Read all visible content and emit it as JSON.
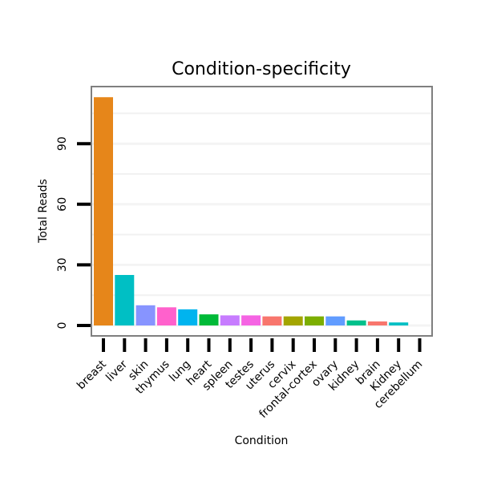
{
  "chart_data": {
    "type": "bar",
    "title": "Condition-specificity",
    "xlabel": "Condition",
    "ylabel": "Total Reads",
    "ylim": [
      0,
      120
    ],
    "yticks": [
      0,
      30,
      60,
      90
    ],
    "grid": true,
    "categories": [
      "breast",
      "liver",
      "skin",
      "thymus",
      "lung",
      "heart",
      "spleen",
      "testes",
      "uterus",
      "cervix",
      "frontal-cortex",
      "ovary",
      "kidney",
      "brain",
      "Kidney",
      "cerebellum"
    ],
    "values": [
      113,
      25,
      10,
      9,
      8,
      5.5,
      5,
      5,
      4.5,
      4.5,
      4.5,
      4.5,
      2.5,
      2,
      1.5,
      0
    ],
    "colors": [
      "#E6861A",
      "#00BFC4",
      "#8794FF",
      "#FF61CC",
      "#00B4EF",
      "#00BA38",
      "#C77CFF",
      "#F564E3",
      "#F8766D",
      "#A3A500",
      "#7CAE00",
      "#619CFF",
      "#00C08B",
      "#F8766D",
      "#00BFC4",
      "#00BFC4"
    ]
  }
}
